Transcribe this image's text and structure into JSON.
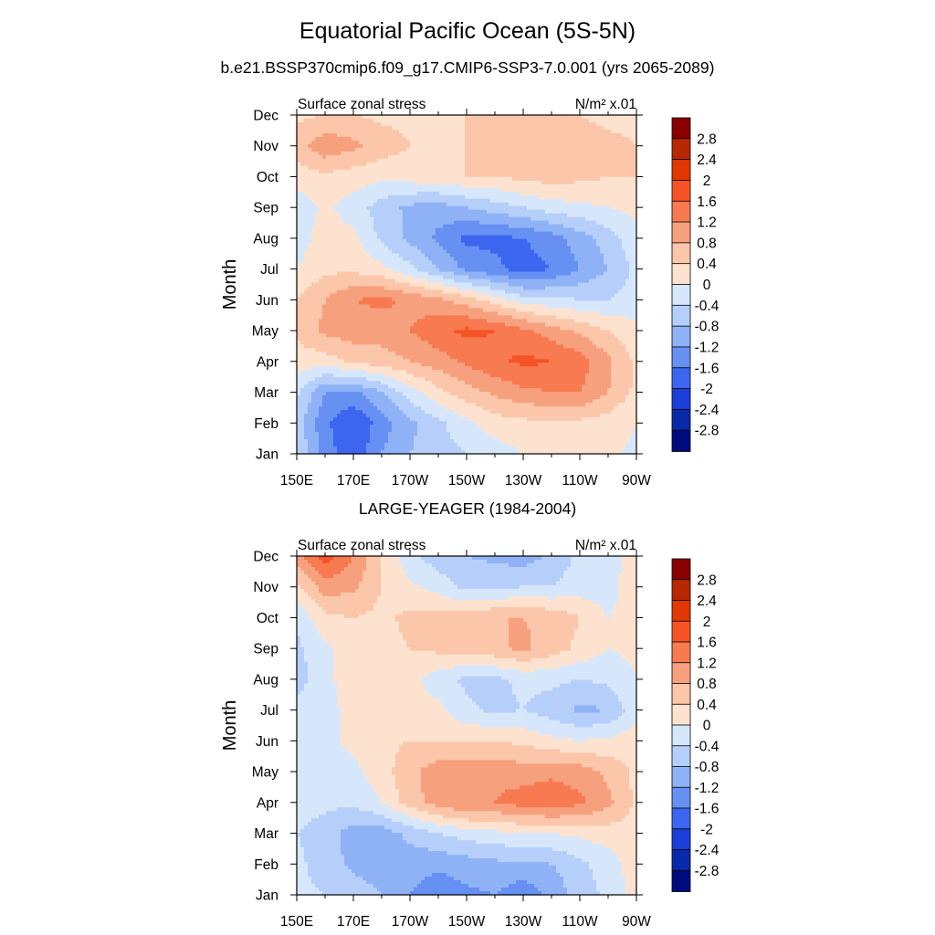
{
  "figure": {
    "title": "Equatorial Pacific Ocean (5S-5N)",
    "subtitle": "b.e21.BSSP370cmip6.f09_g17.CMIP6-SSP3-7.0.001 (yrs 2065-2089)",
    "second_panel_title": "LARGE-YEAGER (1984-2004)"
  },
  "chart_data": [
    {
      "type": "heatmap",
      "panel_title": "b.e21.BSSP370cmip6.f09_g17.CMIP6-SSP3-7.0.001 (yrs 2065-2089)",
      "left_label": "Surface zonal stress",
      "units": "N/m² x.01",
      "ylabel": "Month",
      "xlabel": "",
      "x_ticks": [
        "150E",
        "170E",
        "170W",
        "150W",
        "130W",
        "110W",
        "90W"
      ],
      "y_ticks": [
        "Jan",
        "Feb",
        "Mar",
        "Apr",
        "May",
        "Jun",
        "Jul",
        "Aug",
        "Sep",
        "Oct",
        "Nov",
        "Dec"
      ],
      "x_lon_east": [
        150,
        160,
        170,
        180,
        190,
        200,
        210,
        220,
        230,
        240,
        250,
        260,
        270
      ],
      "levels": [
        -2.8,
        -2.4,
        -2,
        -1.6,
        -1.2,
        -0.8,
        -0.4,
        0,
        0.4,
        0.8,
        1.2,
        1.6,
        2,
        2.4,
        2.8
      ],
      "z": [
        [
          -0.4,
          -1.4,
          -1.9,
          -1.2,
          -0.8,
          -0.6,
          -0.4,
          -0.2,
          0.0,
          0.1,
          0.2,
          0.1,
          -0.1
        ],
        [
          -0.6,
          -1.5,
          -2.0,
          -1.4,
          -0.9,
          -0.5,
          -0.1,
          0.2,
          0.3,
          0.3,
          0.3,
          0.2,
          0.0
        ],
        [
          -0.3,
          -1.2,
          -1.3,
          -0.8,
          -0.2,
          0.3,
          0.6,
          0.9,
          1.1,
          1.2,
          1.2,
          0.8,
          0.3
        ],
        [
          0.2,
          0.2,
          0.5,
          0.6,
          0.8,
          1.0,
          1.3,
          1.5,
          1.7,
          1.6,
          1.4,
          0.9,
          0.3
        ],
        [
          0.5,
          0.9,
          1.0,
          1.0,
          1.2,
          1.5,
          1.7,
          1.6,
          1.3,
          1.0,
          0.7,
          0.4,
          0.1
        ],
        [
          0.4,
          0.8,
          1.2,
          1.3,
          1.1,
          0.9,
          0.6,
          0.2,
          -0.2,
          -0.3,
          -0.4,
          -0.4,
          -0.2
        ],
        [
          0.0,
          0.3,
          0.3,
          0.1,
          -0.3,
          -0.8,
          -1.3,
          -1.5,
          -1.8,
          -1.6,
          -1.2,
          -0.8,
          -0.3
        ],
        [
          -0.2,
          0.2,
          0.1,
          -0.5,
          -0.9,
          -1.3,
          -1.7,
          -1.7,
          -1.6,
          -1.4,
          -1.0,
          -0.6,
          -0.1
        ],
        [
          -0.3,
          0.1,
          -0.2,
          -0.6,
          -0.9,
          -1.0,
          -0.8,
          -0.6,
          -0.4,
          -0.2,
          -0.1,
          0.0,
          0.1
        ],
        [
          0.2,
          0.3,
          0.2,
          0.1,
          0.2,
          0.3,
          0.4,
          0.4,
          0.5,
          0.6,
          0.5,
          0.4,
          0.4
        ],
        [
          0.6,
          1.1,
          0.9,
          0.6,
          0.4,
          0.4,
          0.4,
          0.5,
          0.6,
          0.7,
          0.6,
          0.5,
          0.4
        ],
        [
          0.3,
          0.4,
          0.4,
          0.3,
          0.3,
          0.3,
          0.4,
          0.4,
          0.4,
          0.5,
          0.4,
          0.3,
          0.3
        ]
      ]
    },
    {
      "type": "heatmap",
      "panel_title": "LARGE-YEAGER (1984-2004)",
      "left_label": "Surface zonal stress",
      "units": "N/m² x.01",
      "ylabel": "Month",
      "xlabel": "",
      "x_ticks": [
        "150E",
        "170E",
        "170W",
        "150W",
        "130W",
        "110W",
        "90W"
      ],
      "y_ticks": [
        "Jan",
        "Feb",
        "Mar",
        "Apr",
        "May",
        "Jun",
        "Jul",
        "Aug",
        "Sep",
        "Oct",
        "Nov",
        "Dec"
      ],
      "x_lon_east": [
        150,
        160,
        170,
        180,
        190,
        200,
        210,
        220,
        230,
        240,
        250,
        260,
        270
      ],
      "levels": [
        -2.8,
        -2.4,
        -2,
        -1.6,
        -1.2,
        -0.8,
        -0.4,
        0,
        0.4,
        0.8,
        1.2,
        1.6,
        2,
        2.4,
        2.8
      ],
      "z": [
        [
          -0.3,
          -0.4,
          -0.6,
          -0.8,
          -1.2,
          -1.5,
          -1.3,
          -1.2,
          -1.5,
          -1.1,
          -0.6,
          -0.3,
          0.2
        ],
        [
          -0.3,
          -0.6,
          -0.9,
          -1.0,
          -1.0,
          -1.1,
          -1.0,
          -0.9,
          -0.9,
          -0.8,
          -0.5,
          -0.2,
          0.2
        ],
        [
          -0.4,
          -0.6,
          -1.0,
          -1.0,
          -0.7,
          -0.4,
          -0.2,
          -0.1,
          0.0,
          0.0,
          0.1,
          0.2,
          0.3
        ],
        [
          -0.2,
          -0.3,
          -0.3,
          0.0,
          0.6,
          1.0,
          1.2,
          1.2,
          1.4,
          1.5,
          1.3,
          0.9,
          0.3
        ],
        [
          -0.1,
          -0.2,
          -0.1,
          0.2,
          0.7,
          1.0,
          1.1,
          1.1,
          1.0,
          1.1,
          1.0,
          0.7,
          0.3
        ],
        [
          -0.1,
          -0.1,
          0.1,
          0.3,
          0.4,
          0.4,
          0.4,
          0.4,
          0.3,
          0.1,
          0.0,
          0.1,
          0.2
        ],
        [
          -0.2,
          -0.2,
          0.2,
          0.3,
          0.2,
          0.1,
          -0.3,
          -0.5,
          -0.4,
          -0.6,
          -0.9,
          -0.8,
          -0.1
        ],
        [
          -0.6,
          -0.1,
          0.2,
          0.3,
          0.1,
          -0.2,
          -0.5,
          -0.5,
          -0.3,
          -0.3,
          -0.4,
          -0.3,
          0.0
        ],
        [
          -0.5,
          -0.1,
          0.2,
          0.3,
          0.4,
          0.5,
          0.6,
          0.7,
          0.9,
          0.6,
          0.3,
          0.0,
          0.1
        ],
        [
          -0.3,
          0.3,
          0.4,
          0.3,
          0.5,
          0.6,
          0.6,
          0.8,
          0.8,
          0.7,
          0.4,
          0.0,
          0.2
        ],
        [
          0.3,
          1.0,
          0.9,
          0.4,
          0.1,
          -0.2,
          -0.5,
          -0.5,
          -0.4,
          -0.4,
          -0.2,
          -0.2,
          0.3
        ],
        [
          1.0,
          1.8,
          1.2,
          0.4,
          -0.3,
          -0.6,
          -0.8,
          -0.9,
          -1.0,
          -0.7,
          -0.3,
          -0.1,
          0.1
        ]
      ]
    }
  ],
  "colorbar": {
    "labels": [
      "2.8",
      "2.4",
      "2",
      "1.6",
      "1.2",
      "0.8",
      "0.4",
      "0",
      "-0.4",
      "-0.8",
      "-1.2",
      "-1.6",
      "-2",
      "-2.4",
      "-2.8"
    ],
    "colors": [
      "#880000",
      "#b82800",
      "#e03800",
      "#f65426",
      "#f77a50",
      "#f7a07e",
      "#fbc6a9",
      "#fde3cf",
      "#d6e7fb",
      "#b6cffa",
      "#8fb2f7",
      "#6690f2",
      "#3c66f0",
      "#1a3fd8",
      "#092aa8",
      "#000b80"
    ]
  }
}
